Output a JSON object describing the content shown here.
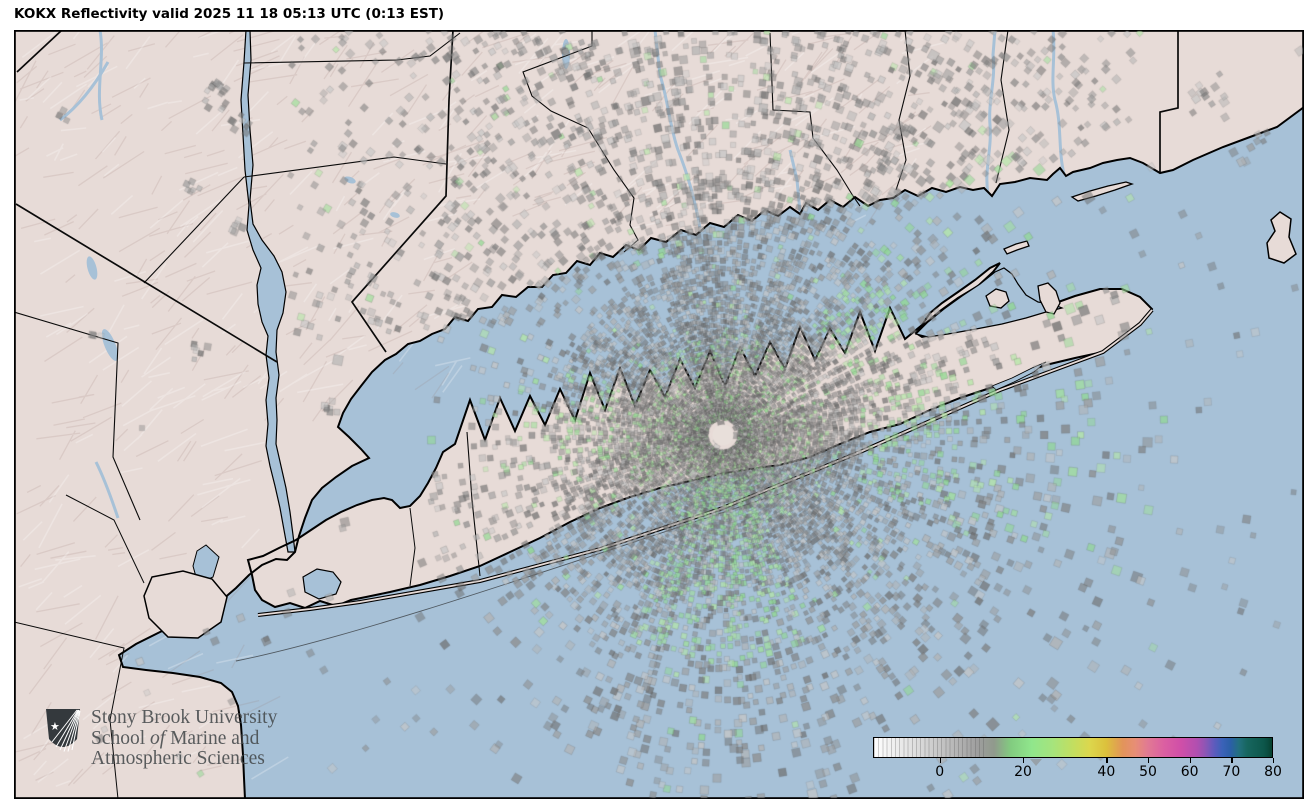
{
  "header": {
    "title": "KOKX Reflectivity valid 2025 11 18 05:13 UTC (0:13 EST)"
  },
  "radar": {
    "station": "KOKX",
    "product": "Reflectivity",
    "valid_utc": "2025 11 18 05:13 UTC",
    "valid_local": "0:13 EST"
  },
  "logo": {
    "line1": "Stony Brook University",
    "line2_pre": "School ",
    "line2_italic": "of",
    "line2_post": " Marine and",
    "line3": "Atmospheric Sciences"
  },
  "colorbar": {
    "min": -16,
    "max": 80,
    "marker_value": 23,
    "ticks": [
      {
        "label": "0",
        "value": 0
      },
      {
        "label": "20",
        "value": 20
      },
      {
        "label": "40",
        "value": 40
      },
      {
        "label": "50",
        "value": 50
      },
      {
        "label": "60",
        "value": 60
      },
      {
        "label": "70",
        "value": 70
      },
      {
        "label": "80",
        "value": 80
      }
    ],
    "stops": [
      {
        "v": -16,
        "c": "#ffffff"
      },
      {
        "v": -6,
        "c": "#dedede"
      },
      {
        "v": 2,
        "c": "#bdbdbd"
      },
      {
        "v": 9,
        "c": "#9e9e9e"
      },
      {
        "v": 13,
        "c": "#909a8c"
      },
      {
        "v": 17,
        "c": "#82cc80"
      },
      {
        "v": 22,
        "c": "#90e68c"
      },
      {
        "v": 27,
        "c": "#a5e47d"
      },
      {
        "v": 32,
        "c": "#c2de60"
      },
      {
        "v": 36,
        "c": "#dcd74d"
      },
      {
        "v": 40,
        "c": "#dcc13c"
      },
      {
        "v": 44,
        "c": "#e2945a"
      },
      {
        "v": 47,
        "c": "#e78e76"
      },
      {
        "v": 50,
        "c": "#e17a93"
      },
      {
        "v": 54,
        "c": "#db5fa2"
      },
      {
        "v": 58,
        "c": "#d04fa8"
      },
      {
        "v": 62,
        "c": "#b04fb0"
      },
      {
        "v": 64,
        "c": "#8c56b5"
      },
      {
        "v": 66,
        "c": "#5f5bbd"
      },
      {
        "v": 68,
        "c": "#3b62b8"
      },
      {
        "v": 70,
        "c": "#2b5fa7"
      },
      {
        "v": 72,
        "c": "#23707f"
      },
      {
        "v": 74,
        "c": "#17665f"
      },
      {
        "v": 78,
        "c": "#0d574b"
      },
      {
        "v": 79,
        "c": "#0a4d40"
      },
      {
        "v": 80,
        "c": "#07402e"
      }
    ]
  },
  "map": {
    "land_color": "#e7dbd7",
    "water_color": "#a7c1d7",
    "terrain_shade": "#cdb9b3",
    "boundary_color": "#000000",
    "center_marker_color": "#e8dfda",
    "clutter_grays": [
      "#6e6e6e",
      "#7d7d7d",
      "#8c8c8c",
      "#9b9b9b",
      "#b2b2b2",
      "#c6c6c6"
    ],
    "clutter_greens": [
      "#8fd98f",
      "#a0e09a",
      "#b4e8a6"
    ]
  }
}
